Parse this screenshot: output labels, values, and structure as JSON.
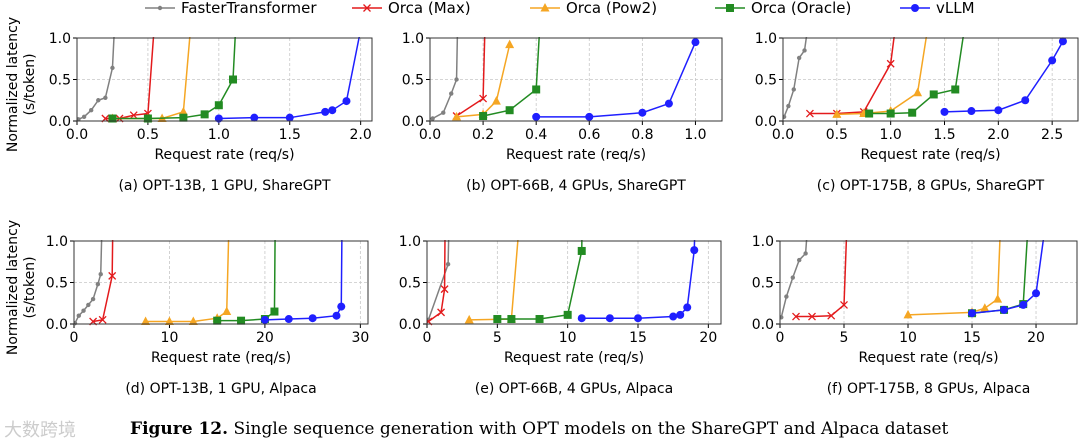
{
  "figure_caption": {
    "label": "Figure 12.",
    "text": "Single sequence generation with OPT models on the ShareGPT and Alpaca dataset"
  },
  "watermark": "大数跨境",
  "legend": [
    {
      "name": "FasterTransformer",
      "color": "#808080",
      "marker": "dot"
    },
    {
      "name": "Orca (Max)",
      "color": "#e31a1c",
      "marker": "x"
    },
    {
      "name": "Orca (Pow2)",
      "color": "#f5a623",
      "marker": "triangle"
    },
    {
      "name": "Orca (Oracle)",
      "color": "#228b22",
      "marker": "square"
    },
    {
      "name": "vLLM",
      "color": "#1f1fff",
      "marker": "circle"
    }
  ],
  "chart_data": [
    {
      "type": "line",
      "title": "(a) OPT-13B, 1 GPU, ShareGPT",
      "xlabel": "Request rate (req/s)",
      "ylabel": [
        "Normalized latency",
        "(s/token)"
      ],
      "xlim": [
        0,
        2.08
      ],
      "ylim": [
        0,
        1
      ],
      "xticks": [
        0,
        0.5,
        1,
        1.5,
        2
      ],
      "xtick_labels": [
        "0.0",
        "0.5",
        "1.0",
        "1.5",
        "2.0"
      ],
      "yticks": [
        0,
        0.5,
        1
      ],
      "ytick_labels": [
        "0.0",
        "0.5",
        "1.0"
      ],
      "grid": true,
      "series": [
        {
          "name": "FasterTransformer",
          "points": [
            [
              0.01,
              0.02
            ],
            [
              0.05,
              0.05
            ],
            [
              0.1,
              0.13
            ],
            [
              0.15,
              0.25
            ],
            [
              0.2,
              0.28
            ],
            [
              0.25,
              0.64
            ],
            [
              0.275,
              1.5
            ]
          ]
        },
        {
          "name": "Orca (Max)",
          "points": [
            [
              0.2,
              0.03
            ],
            [
              0.3,
              0.03
            ],
            [
              0.4,
              0.07
            ],
            [
              0.5,
              0.09
            ],
            [
              0.56,
              1.5
            ]
          ]
        },
        {
          "name": "Orca (Pow2)",
          "points": [
            [
              0.25,
              0.03
            ],
            [
              0.5,
              0.03
            ],
            [
              0.6,
              0.03
            ],
            [
              0.75,
              0.11
            ],
            [
              0.82,
              1.5
            ]
          ]
        },
        {
          "name": "Orca (Oracle)",
          "points": [
            [
              0.25,
              0.03
            ],
            [
              0.5,
              0.03
            ],
            [
              0.75,
              0.04
            ],
            [
              0.9,
              0.08
            ],
            [
              1.0,
              0.19
            ],
            [
              1.1,
              0.5
            ],
            [
              1.13,
              1.5
            ]
          ]
        },
        {
          "name": "vLLM",
          "points": [
            [
              1.0,
              0.03
            ],
            [
              1.25,
              0.04
            ],
            [
              1.5,
              0.04
            ],
            [
              1.75,
              0.11
            ],
            [
              1.8,
              0.13
            ],
            [
              1.9,
              0.24
            ],
            [
              2.0,
              1.1
            ]
          ]
        }
      ]
    },
    {
      "type": "line",
      "title": "(b) OPT-66B, 4 GPUs, ShareGPT",
      "xlabel": "Request rate (req/s)",
      "ylabel": null,
      "xlim": [
        0,
        1.1
      ],
      "ylim": [
        0,
        1
      ],
      "xticks": [
        0,
        0.2,
        0.4,
        0.6,
        0.8,
        1
      ],
      "xtick_labels": [
        "0.0",
        "0.2",
        "0.4",
        "0.6",
        "0.8",
        "1.0"
      ],
      "yticks": [
        0,
        0.5,
        1
      ],
      "ytick_labels": [
        "0.0",
        "0.5",
        "1.0"
      ],
      "grid": true,
      "series": [
        {
          "name": "FasterTransformer",
          "points": [
            [
              0.01,
              0.03
            ],
            [
              0.05,
              0.1
            ],
            [
              0.08,
              0.33
            ],
            [
              0.1,
              0.5
            ],
            [
              0.106,
              1.5
            ]
          ]
        },
        {
          "name": "Orca (Max)",
          "points": [
            [
              0.1,
              0.06
            ],
            [
              0.2,
              0.27
            ],
            [
              0.21,
              1.5
            ]
          ]
        },
        {
          "name": "Orca (Pow2)",
          "points": [
            [
              0.1,
              0.05
            ],
            [
              0.2,
              0.08
            ],
            [
              0.25,
              0.24
            ],
            [
              0.3,
              0.92
            ]
          ]
        },
        {
          "name": "Orca (Oracle)",
          "points": [
            [
              0.2,
              0.06
            ],
            [
              0.3,
              0.13
            ],
            [
              0.4,
              0.38
            ],
            [
              0.42,
              1.5
            ]
          ]
        },
        {
          "name": "vLLM",
          "points": [
            [
              0.4,
              0.05
            ],
            [
              0.6,
              0.05
            ],
            [
              0.8,
              0.1
            ],
            [
              0.9,
              0.21
            ],
            [
              1.0,
              0.95
            ]
          ]
        }
      ]
    },
    {
      "type": "line",
      "title": "(c) OPT-175B, 8 GPUs, ShareGPT",
      "xlabel": "Request rate (req/s)",
      "ylabel": null,
      "xlim": [
        0,
        2.74
      ],
      "ylim": [
        0,
        1
      ],
      "xticks": [
        0,
        0.5,
        1,
        1.5,
        2,
        2.5
      ],
      "xtick_labels": [
        "0.0",
        "0.5",
        "1.0",
        "1.5",
        "2.0",
        "2.5"
      ],
      "yticks": [
        0,
        0.5,
        1
      ],
      "ytick_labels": [
        "0.0",
        "0.5",
        "1.0"
      ],
      "grid": true,
      "series": [
        {
          "name": "FasterTransformer",
          "points": [
            [
              0.01,
              0.05
            ],
            [
              0.05,
              0.18
            ],
            [
              0.1,
              0.38
            ],
            [
              0.15,
              0.76
            ],
            [
              0.2,
              0.85
            ],
            [
              0.27,
              1.5
            ]
          ]
        },
        {
          "name": "Orca (Max)",
          "points": [
            [
              0.25,
              0.09
            ],
            [
              0.5,
              0.09
            ],
            [
              0.75,
              0.11
            ],
            [
              1.0,
              0.69
            ],
            [
              1.08,
              1.5
            ]
          ]
        },
        {
          "name": "Orca (Pow2)",
          "points": [
            [
              0.5,
              0.08
            ],
            [
              0.75,
              0.09
            ],
            [
              1.0,
              0.12
            ],
            [
              1.25,
              0.34
            ],
            [
              1.39,
              1.5
            ]
          ]
        },
        {
          "name": "Orca (Oracle)",
          "points": [
            [
              0.8,
              0.09
            ],
            [
              1.0,
              0.09
            ],
            [
              1.2,
              0.1
            ],
            [
              1.4,
              0.32
            ],
            [
              1.6,
              0.38
            ],
            [
              1.73,
              1.5
            ]
          ]
        },
        {
          "name": "vLLM",
          "points": [
            [
              1.5,
              0.11
            ],
            [
              1.75,
              0.12
            ],
            [
              2.0,
              0.13
            ],
            [
              2.25,
              0.25
            ],
            [
              2.5,
              0.73
            ],
            [
              2.6,
              0.96
            ]
          ]
        }
      ]
    },
    {
      "type": "line",
      "title": "(d) OPT-13B, 1 GPU, Alpaca",
      "xlabel": "Request rate (req/s)",
      "ylabel": [
        "Normalized latency",
        "(s/token)"
      ],
      "xlim": [
        0,
        30.8
      ],
      "ylim": [
        0,
        1
      ],
      "xticks": [
        0,
        10,
        20,
        30
      ],
      "xtick_labels": [
        "0",
        "10",
        "20",
        "30"
      ],
      "yticks": [
        0,
        0.5,
        1
      ],
      "ytick_labels": [
        "0.0",
        "0.5",
        "1.0"
      ],
      "grid": true,
      "series": [
        {
          "name": "FasterTransformer",
          "points": [
            [
              0.1,
              0.01
            ],
            [
              0.5,
              0.1
            ],
            [
              1,
              0.16
            ],
            [
              1.5,
              0.23
            ],
            [
              2,
              0.3
            ],
            [
              2.5,
              0.48
            ],
            [
              2.8,
              0.6
            ],
            [
              3.0,
              1.5
            ]
          ]
        },
        {
          "name": "Orca (Max)",
          "points": [
            [
              2,
              0.03
            ],
            [
              3,
              0.05
            ],
            [
              4,
              0.58
            ],
            [
              4.1,
              1.5
            ]
          ]
        },
        {
          "name": "Orca (Pow2)",
          "points": [
            [
              7.5,
              0.03
            ],
            [
              10,
              0.03
            ],
            [
              12.5,
              0.03
            ],
            [
              15,
              0.07
            ],
            [
              16,
              0.15
            ],
            [
              16.3,
              1.5
            ]
          ]
        },
        {
          "name": "Orca (Oracle)",
          "points": [
            [
              15,
              0.04
            ],
            [
              17.5,
              0.04
            ],
            [
              20,
              0.06
            ],
            [
              21,
              0.15
            ],
            [
              21.1,
              1.5
            ]
          ]
        },
        {
          "name": "vLLM",
          "points": [
            [
              20,
              0.05
            ],
            [
              22.5,
              0.06
            ],
            [
              25,
              0.07
            ],
            [
              27.5,
              0.1
            ],
            [
              28,
              0.21
            ],
            [
              28.1,
              1.5
            ]
          ]
        }
      ]
    },
    {
      "type": "line",
      "title": "(e) OPT-66B, 4 GPUs, Alpaca",
      "xlabel": "Request rate (req/s)",
      "ylabel": null,
      "xlim": [
        0,
        20.9
      ],
      "ylim": [
        0,
        1
      ],
      "xticks": [
        0,
        5,
        10,
        15,
        20
      ],
      "xtick_labels": [
        "0",
        "5",
        "10",
        "15",
        "20"
      ],
      "yticks": [
        0,
        0.5,
        1
      ],
      "ytick_labels": [
        "0.0",
        "0.5",
        "1.0"
      ],
      "grid": true,
      "series": [
        {
          "name": "FasterTransformer",
          "points": [
            [
              0.1,
              0.05
            ],
            [
              1.5,
              0.72
            ],
            [
              1.6,
              1.5
            ]
          ]
        },
        {
          "name": "Orca (Max)",
          "points": [
            [
              0.1,
              0.03
            ],
            [
              1,
              0.14
            ],
            [
              1.25,
              0.42
            ],
            [
              1.3,
              1.5
            ]
          ]
        },
        {
          "name": "Orca (Pow2)",
          "points": [
            [
              3,
              0.05
            ],
            [
              6,
              0.06
            ],
            [
              6.7,
              1.5
            ]
          ]
        },
        {
          "name": "Orca (Oracle)",
          "points": [
            [
              5,
              0.06
            ],
            [
              6,
              0.06
            ],
            [
              8,
              0.06
            ],
            [
              10,
              0.11
            ],
            [
              11,
              0.88
            ],
            [
              11.05,
              1.5
            ]
          ]
        },
        {
          "name": "vLLM",
          "points": [
            [
              11,
              0.07
            ],
            [
              13,
              0.07
            ],
            [
              15,
              0.07
            ],
            [
              17.5,
              0.09
            ],
            [
              18,
              0.11
            ],
            [
              18.5,
              0.2
            ],
            [
              19,
              0.89
            ],
            [
              19.1,
              1.5
            ]
          ]
        }
      ]
    },
    {
      "type": "line",
      "title": "(f) OPT-175B, 8 GPUs, Alpaca",
      "xlabel": "Request rate (req/s)",
      "ylabel": null,
      "xlim": [
        0,
        23.2
      ],
      "ylim": [
        0,
        1
      ],
      "xticks": [
        0,
        5,
        10,
        15,
        20
      ],
      "xtick_labels": [
        "0",
        "5",
        "10",
        "15",
        "20"
      ],
      "yticks": [
        0,
        0.5,
        1
      ],
      "ytick_labels": [
        "0.0",
        "0.5",
        "1.0"
      ],
      "grid": true,
      "series": [
        {
          "name": "FasterTransformer",
          "points": [
            [
              0.1,
              0.08
            ],
            [
              0.5,
              0.33
            ],
            [
              1,
              0.56
            ],
            [
              1.5,
              0.77
            ],
            [
              2,
              0.85
            ],
            [
              2.3,
              1.5
            ]
          ]
        },
        {
          "name": "Orca (Max)",
          "points": [
            [
              1.25,
              0.09
            ],
            [
              2.5,
              0.09
            ],
            [
              4,
              0.1
            ],
            [
              5,
              0.23
            ],
            [
              5.3,
              1.5
            ]
          ]
        },
        {
          "name": "Orca (Pow2)",
          "points": [
            [
              10,
              0.11
            ],
            [
              15,
              0.14
            ],
            [
              16,
              0.19
            ],
            [
              17,
              0.3
            ],
            [
              17.3,
              1.5
            ]
          ]
        },
        {
          "name": "Orca (Oracle)",
          "points": [
            [
              15,
              0.13
            ],
            [
              17.5,
              0.17
            ],
            [
              19,
              0.24
            ],
            [
              19.5,
              1.5
            ]
          ]
        },
        {
          "name": "vLLM",
          "points": [
            [
              15,
              0.13
            ],
            [
              17.5,
              0.17
            ],
            [
              19,
              0.23
            ],
            [
              20,
              0.37
            ],
            [
              21,
              1.5
            ]
          ]
        }
      ]
    }
  ]
}
